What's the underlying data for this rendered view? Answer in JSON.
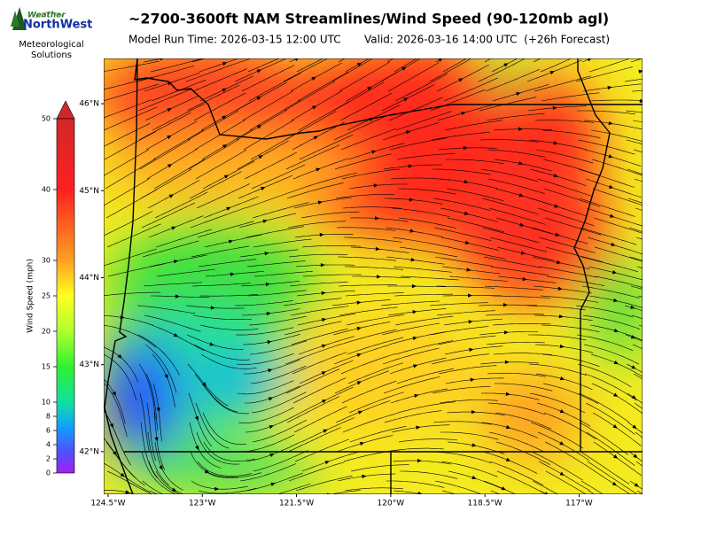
{
  "header": {
    "title": "~2700-3600ft NAM Streamlines/Wind Speed (90-120mb agl)",
    "model_run": "Model Run Time: 2026-03-15 12:00 UTC",
    "valid": "Valid: 2026-03-16 14:00 UTC  (+26h Forecast)"
  },
  "logo": {
    "brand_top": "Weather",
    "brand": "NorthWest",
    "tagline": [
      "Meteorological",
      "Solutions"
    ]
  },
  "colorbar": {
    "label": "Wind Speed (mph)",
    "lim": [
      0,
      50
    ],
    "ticks": [
      0,
      2,
      4,
      6,
      8,
      10,
      15,
      20,
      25,
      30,
      40,
      50
    ]
  },
  "map": {
    "lonlim": [
      -124.57,
      -115.99
    ],
    "latlim": [
      41.51,
      46.52
    ],
    "lon_ticks": [
      {
        "value": -124.5,
        "label": "124.5°W"
      },
      {
        "value": -123,
        "label": "123°W"
      },
      {
        "value": -121.5,
        "label": "121.5°W"
      },
      {
        "value": -120,
        "label": "120°W"
      },
      {
        "value": -118.5,
        "label": "118.5°W"
      },
      {
        "value": -117,
        "label": "117°W"
      }
    ],
    "lat_ticks": [
      {
        "value": 46,
        "label": "46°N"
      },
      {
        "value": 45,
        "label": "45°N"
      },
      {
        "value": 44,
        "label": "44°N"
      },
      {
        "value": 43,
        "label": "43°N"
      },
      {
        "value": 42,
        "label": "42°N"
      }
    ]
  }
}
